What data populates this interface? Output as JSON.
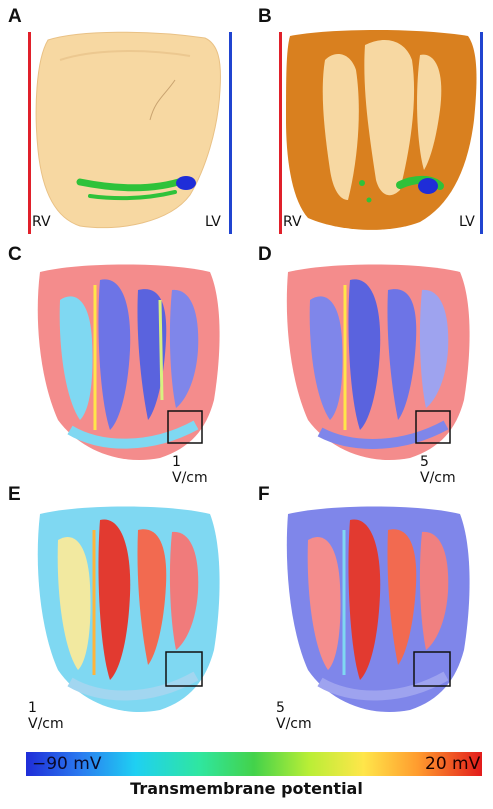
{
  "panels": [
    {
      "letter": "A",
      "left_label": "RV",
      "right_label": "LV"
    },
    {
      "letter": "B",
      "left_label": "RV",
      "right_label": "LV"
    },
    {
      "letter": "C",
      "field": "1 V/cm"
    },
    {
      "letter": "D",
      "field": "5 V/cm"
    },
    {
      "letter": "E",
      "field": "1 V/cm"
    },
    {
      "letter": "F",
      "field": "5 V/cm"
    }
  ],
  "colorbar": {
    "min_label": "−90 mV",
    "max_label": "20 mV",
    "title": "Transmembrane potential",
    "colors": [
      "#1f2dd8",
      "#1fd0f2",
      "#43d24a",
      "#ffe64a",
      "#e21b1b"
    ]
  },
  "colors": {
    "rv_line": "#e0202a",
    "lv_line": "#2044d0",
    "epicardium": "#f7d8a2",
    "myocardium_cut": "#d9801f",
    "activation_green": "#2fc23a",
    "activation_blue": "#1f2dd8"
  }
}
